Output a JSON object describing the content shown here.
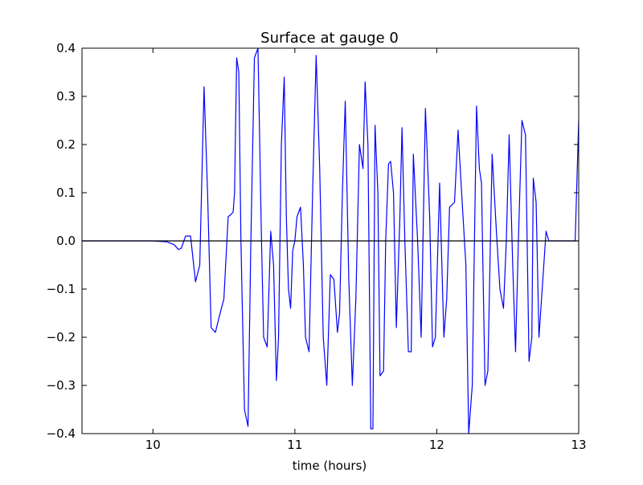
{
  "chart_data": {
    "type": "line",
    "title": "Surface at gauge 0",
    "xlabel": "time (hours)",
    "ylabel": "",
    "xlim": [
      9.5,
      13
    ],
    "ylim": [
      -0.4,
      0.4
    ],
    "xticks": [
      10,
      11,
      12,
      13
    ],
    "xtick_labels": [
      "10",
      "11",
      "12",
      "13"
    ],
    "yticks": [
      -0.4,
      -0.3,
      -0.2,
      -0.1,
      0.0,
      0.1,
      0.2,
      0.3,
      0.4
    ],
    "ytick_labels": [
      "−0.4",
      "−0.3",
      "−0.2",
      "−0.1",
      "0.0",
      "0.1",
      "0.2",
      "0.3",
      "0.4"
    ],
    "grid": false,
    "reference_line": {
      "y": 0,
      "color": "#000000"
    },
    "series": [
      {
        "color": "#0000ff",
        "x": [
          9.5,
          10.0,
          10.1,
          10.15,
          10.18,
          10.2,
          10.23,
          10.265,
          10.3,
          10.33,
          10.36,
          10.385,
          10.41,
          10.44,
          10.465,
          10.5,
          10.53,
          10.55,
          10.565,
          10.575,
          10.59,
          10.605,
          10.62,
          10.645,
          10.67,
          10.69,
          10.715,
          10.74,
          10.765,
          10.78,
          10.805,
          10.83,
          10.85,
          10.87,
          10.885,
          10.905,
          10.925,
          10.94,
          10.955,
          10.97,
          10.985,
          11.0,
          11.015,
          11.04,
          11.06,
          11.075,
          11.1,
          11.125,
          11.15,
          11.175,
          11.2,
          11.225,
          11.25,
          11.275,
          11.3,
          11.315,
          11.335,
          11.355,
          11.38,
          11.405,
          11.43,
          11.455,
          11.48,
          11.495,
          11.515,
          11.535,
          11.55,
          11.565,
          11.585,
          11.6,
          11.625,
          11.64,
          11.66,
          11.675,
          11.695,
          11.715,
          11.74,
          11.755,
          11.775,
          11.8,
          11.82,
          11.835,
          11.865,
          11.89,
          11.92,
          11.95,
          11.97,
          11.99,
          12.02,
          12.05,
          12.07,
          12.09,
          12.125,
          12.15,
          12.175,
          12.205,
          12.225,
          12.25,
          12.28,
          12.3,
          12.315,
          12.325,
          12.34,
          12.36,
          12.39,
          12.42,
          12.445,
          12.47,
          12.49,
          12.51,
          12.535,
          12.555,
          12.575,
          12.6,
          12.625,
          12.65,
          12.67,
          12.68,
          12.7,
          12.72,
          12.745,
          12.77,
          12.79,
          12.81,
          12.835,
          12.865,
          12.885,
          12.905,
          12.935,
          12.96,
          12.975,
          13.0
        ],
        "y": [
          0.0,
          0.0,
          -0.002,
          -0.008,
          -0.018,
          -0.015,
          0.01,
          0.01,
          -0.085,
          -0.05,
          0.32,
          0.1,
          -0.18,
          -0.19,
          -0.16,
          -0.12,
          0.05,
          0.055,
          0.06,
          0.1,
          0.38,
          0.35,
          0.0,
          -0.35,
          -0.385,
          0.0,
          0.38,
          0.4,
          0.0,
          -0.2,
          -0.22,
          0.02,
          -0.05,
          -0.29,
          -0.2,
          0.2,
          0.34,
          0.05,
          -0.1,
          -0.14,
          -0.02,
          0.0,
          0.05,
          0.07,
          -0.05,
          -0.2,
          -0.23,
          0.1,
          0.385,
          0.15,
          -0.2,
          -0.3,
          -0.07,
          -0.08,
          -0.19,
          -0.15,
          0.1,
          0.29,
          -0.08,
          -0.3,
          -0.12,
          0.2,
          0.15,
          0.33,
          0.2,
          -0.39,
          -0.39,
          0.24,
          0.1,
          -0.28,
          -0.27,
          0.0,
          0.16,
          0.165,
          0.1,
          -0.18,
          0.05,
          0.235,
          0.0,
          -0.23,
          -0.23,
          0.18,
          0.0,
          -0.2,
          0.275,
          0.05,
          -0.22,
          -0.2,
          0.12,
          -0.2,
          -0.12,
          0.07,
          0.08,
          0.23,
          0.1,
          -0.05,
          -0.4,
          -0.3,
          0.28,
          0.15,
          0.12,
          -0.05,
          -0.3,
          -0.27,
          0.18,
          0.02,
          -0.1,
          -0.14,
          0.0,
          0.22,
          -0.05,
          -0.23,
          0.0,
          0.25,
          0.22,
          -0.25,
          -0.2,
          0.13,
          0.08,
          -0.2,
          -0.09,
          0.02,
          0.0,
          0.0,
          0.0,
          0.0,
          0.0,
          0.0,
          0.0,
          0.0,
          0.0,
          0.25
        ]
      }
    ]
  }
}
